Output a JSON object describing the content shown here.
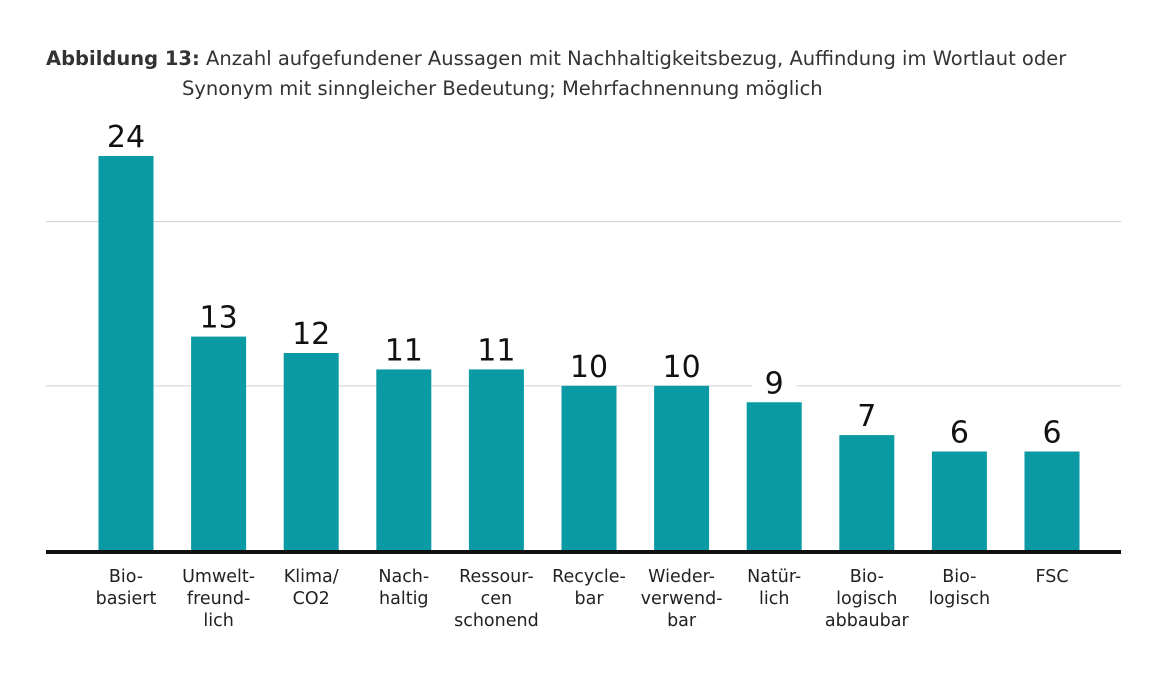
{
  "caption": {
    "prefix": "Abbildung 13:",
    "line1": "Anzahl aufgefundener Aussagen mit Nachhaltigkeitsbezug, Auffindung im Wortlaut oder",
    "line2": "Synonym mit sinngleicher Bedeutung; Mehrfachnennung möglich"
  },
  "colors": {
    "bar": "#0a9aa3",
    "grid": "#d0d0d0",
    "axis": "#111111"
  },
  "chart_data": {
    "type": "bar",
    "categories": [
      "Bio-\nbasiert",
      "Umwelt-\nfreund-\nlich",
      "Klima/\nCO2",
      "Nach-\nhaltig",
      "Ressour-\ncen\nschonend",
      "Recycle-\nbar",
      "Wieder-\nverwend-\nbar",
      "Natür-\nlich",
      "Bio-\nlogisch\nabbaubar",
      "Bio-\nlogisch",
      "FSC"
    ],
    "values": [
      24,
      13,
      12,
      11,
      11,
      10,
      10,
      9,
      7,
      6,
      6
    ],
    "data_labels": [
      "24",
      "13",
      "12",
      "11",
      "11",
      "10",
      "10",
      "9",
      "7",
      "6",
      "6"
    ],
    "ylim": [
      0,
      24
    ],
    "gridlines": [
      10,
      20
    ],
    "grid": true,
    "legend": "none",
    "title": "",
    "xlabel": "",
    "ylabel": ""
  }
}
